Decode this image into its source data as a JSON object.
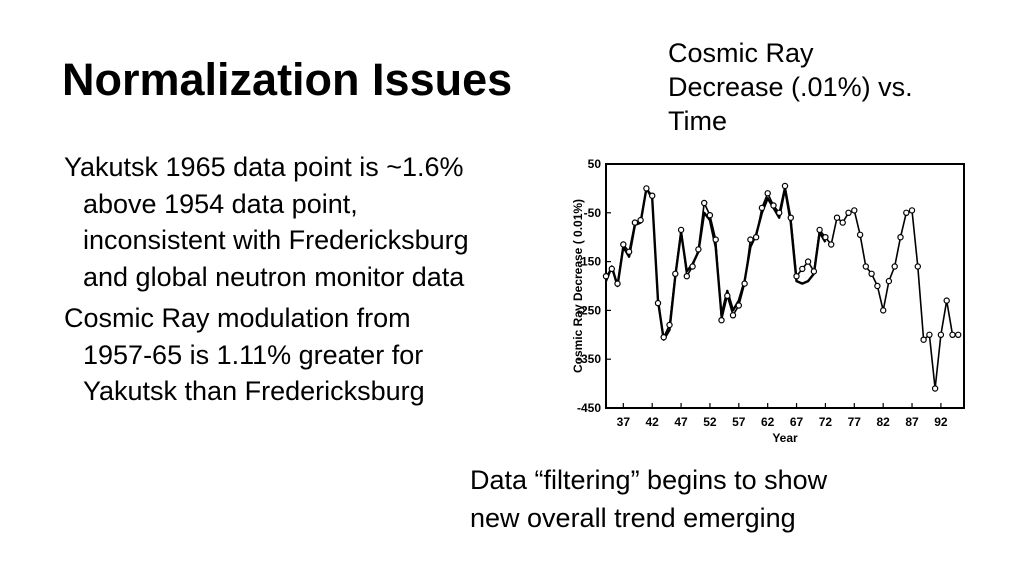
{
  "slide": {
    "title": "Normalization Issues",
    "chart_caption": "Cosmic Ray\nDecrease (.01%) vs.\nTime",
    "bullets": [
      "Yakutsk 1965 data point is ~1.6% above 1954 data point, inconsistent with Fredericksburg and global neutron monitor data",
      "Cosmic Ray modulation from 1957-65 is 1.11% greater for Yakutsk than Fredericksburg"
    ],
    "note": "Data “filtering” begins to show\nnew overall trend emerging"
  },
  "colors": {
    "background": "#ffffff",
    "text": "#000000",
    "line": "#000000"
  },
  "chart_data": {
    "type": "line",
    "xlabel": "Year",
    "ylabel": "Cosmic Ray Decrease ( 0.01%)",
    "xlim": [
      34,
      96
    ],
    "ylim": [
      -450,
      50
    ],
    "x_ticks": [
      37,
      42,
      47,
      52,
      57,
      62,
      67,
      72,
      77,
      82,
      87,
      92
    ],
    "y_ticks": [
      50,
      -50,
      -150,
      -250,
      -350,
      -450
    ],
    "grid": false,
    "series": [
      {
        "marker": "none",
        "x": [
          34,
          35,
          36,
          37,
          38,
          39,
          40,
          41,
          42,
          43,
          44,
          45,
          46,
          47,
          48,
          49,
          50,
          51,
          52,
          53,
          54,
          55,
          56,
          57,
          58,
          59,
          60,
          61,
          62,
          63,
          64,
          65,
          66,
          67,
          68,
          69,
          70,
          71,
          72
        ],
        "y": [
          -190,
          -160,
          -200,
          -120,
          -140,
          -75,
          -70,
          0,
          -20,
          -230,
          -310,
          -290,
          -180,
          -90,
          -170,
          -155,
          -130,
          -50,
          -65,
          -120,
          -260,
          -210,
          -250,
          -230,
          -190,
          -120,
          -95,
          -50,
          -20,
          -40,
          -60,
          0,
          -70,
          -190,
          -195,
          -190,
          -175,
          -90,
          -110
        ]
      },
      {
        "marker": "circle",
        "x": [
          34,
          35,
          36,
          37,
          38,
          39,
          40,
          41,
          42,
          43,
          44,
          45,
          46,
          47,
          48,
          49,
          50,
          51,
          52,
          53,
          54,
          55,
          56,
          57,
          58,
          59,
          60,
          61,
          62,
          63,
          64,
          65,
          66,
          67,
          68,
          69,
          70,
          71,
          72,
          73,
          74,
          75,
          76,
          77,
          78,
          79,
          80,
          81,
          82,
          83,
          84,
          85,
          86,
          87,
          88,
          89,
          90,
          91,
          92,
          93,
          94,
          95
        ],
        "y": [
          -180,
          -165,
          -195,
          -115,
          -130,
          -70,
          -65,
          0,
          -15,
          -235,
          -305,
          -280,
          -175,
          -85,
          -180,
          -160,
          -125,
          -30,
          -55,
          -105,
          -270,
          -220,
          -260,
          -240,
          -195,
          -105,
          -100,
          -40,
          -10,
          -35,
          -50,
          5,
          -60,
          -180,
          -165,
          -150,
          -170,
          -85,
          -100,
          -115,
          -60,
          -70,
          -50,
          -45,
          -95,
          -160,
          -175,
          -200,
          -250,
          -190,
          -160,
          -100,
          -50,
          -45,
          -160,
          -310,
          -300,
          -410,
          -300,
          -230,
          -300,
          -300
        ]
      }
    ]
  }
}
